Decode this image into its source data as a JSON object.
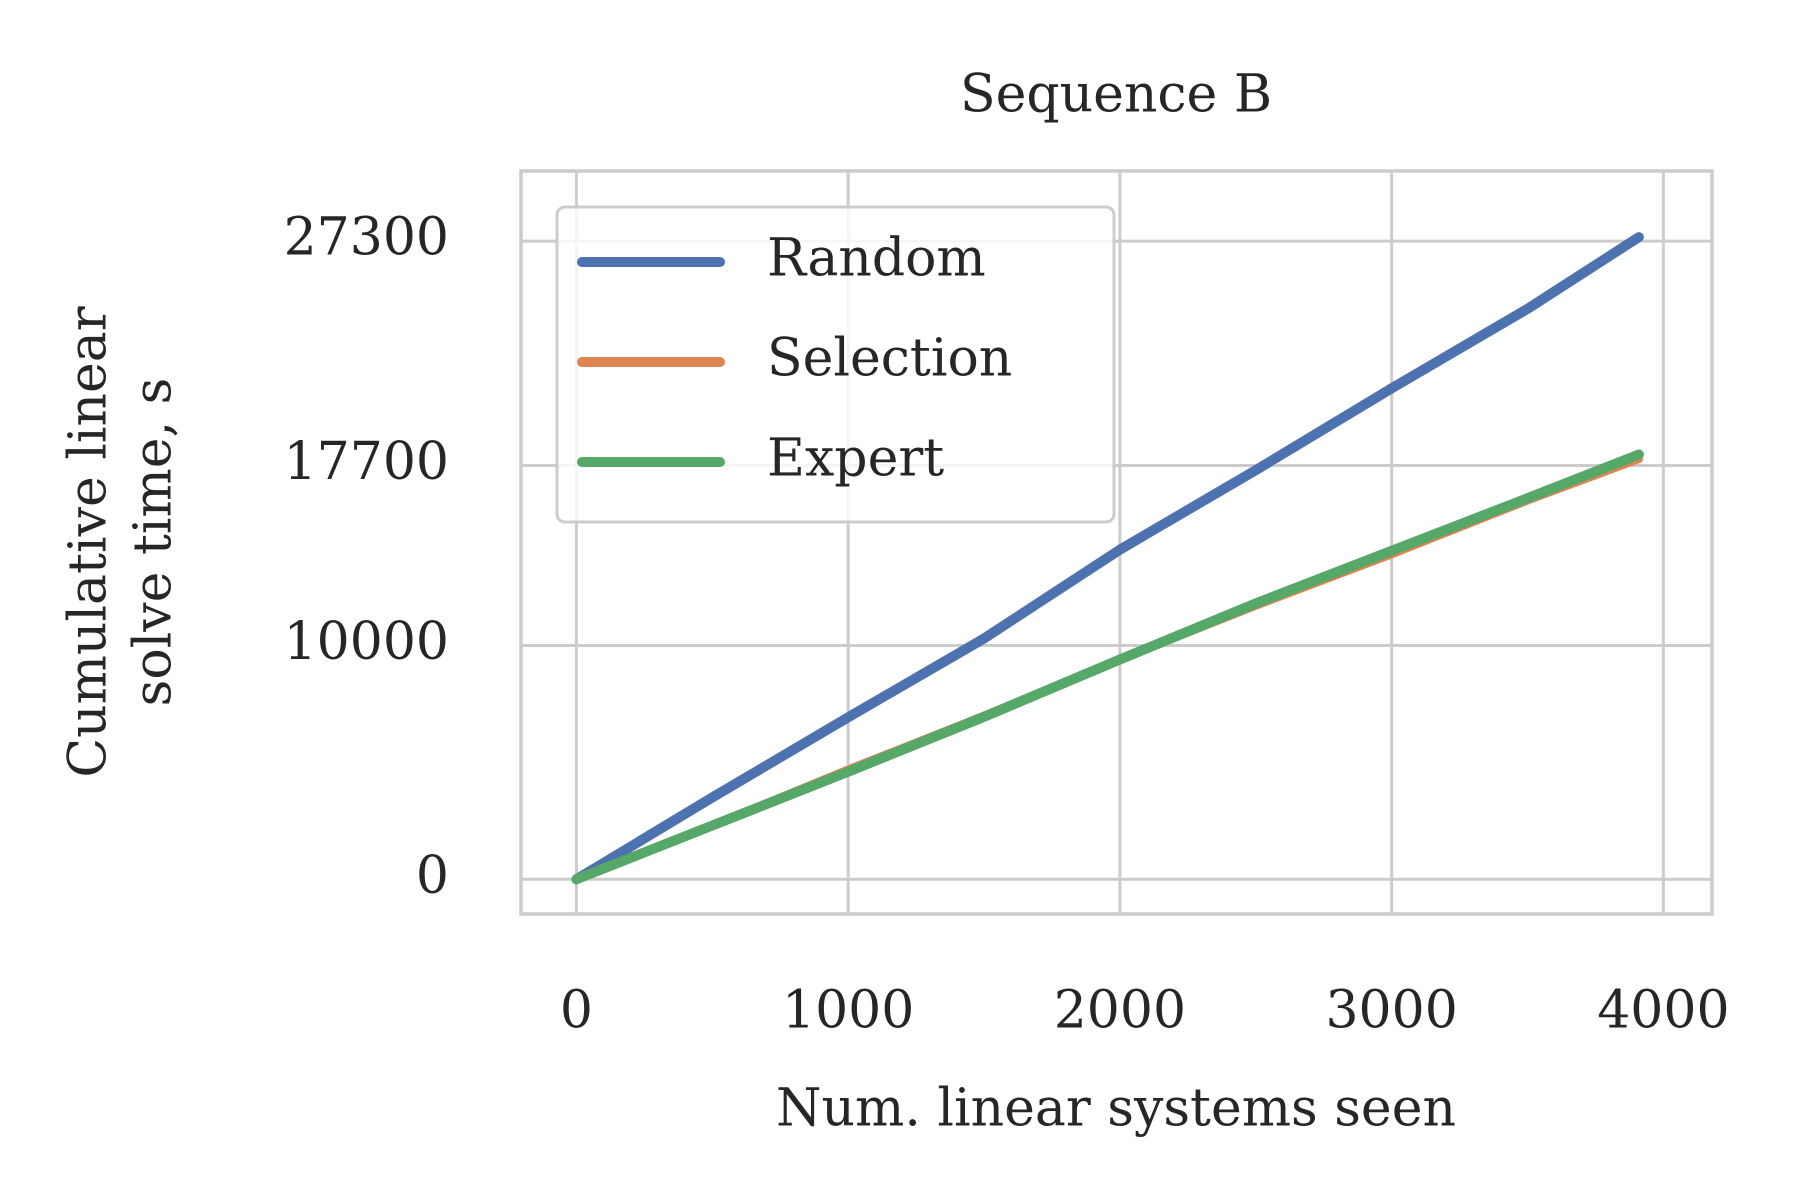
{
  "chart_data": {
    "type": "line",
    "title": "Sequence B",
    "x_label": "Num. linear systems seen",
    "y_label": [
      "Cumulative linear",
      "solve time, s"
    ],
    "x": [
      0,
      500,
      1000,
      1500,
      2000,
      2500,
      3000,
      3500,
      3910
    ],
    "series": [
      {
        "name": "Random",
        "color": "#4c72b0",
        "values": [
          0,
          3500,
          6930,
          10300,
          14100,
          17500,
          21000,
          24400,
          27470
        ]
      },
      {
        "name": "Selection",
        "color": "#dd8452",
        "values": [
          0,
          2300,
          4700,
          7000,
          9400,
          11700,
          13900,
          16200,
          17970
        ]
      },
      {
        "name": "Expert",
        "color": "#55a868",
        "values": [
          0,
          2300,
          4600,
          6950,
          9400,
          11800,
          14050,
          16300,
          18170
        ]
      }
    ],
    "xlim": [
      -204,
      4179
    ],
    "ylim": [
      -1485,
      30297
    ],
    "xticks": [
      0,
      1000,
      2000,
      3000,
      4000
    ],
    "yticks": [
      0,
      10000,
      17700,
      27300
    ],
    "grid": true,
    "legend": "upper left"
  }
}
